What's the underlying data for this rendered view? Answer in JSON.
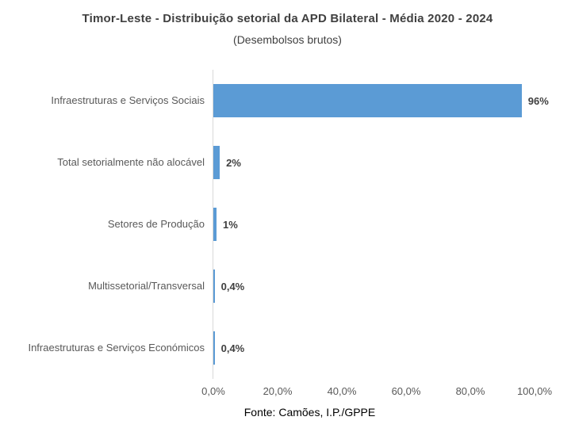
{
  "title": "Timor-Leste - Distribuição setorial da APD Bilateral - Média 2020 - 2024",
  "subtitle": "(Desembolsos brutos)",
  "source": "Fonte: Camões, I.P./GPPE",
  "colors": {
    "bar": "#5b9bd5",
    "title_text": "#404040",
    "axis_text": "#595959",
    "axis_line": "#d9d9d9"
  },
  "chart_data": {
    "type": "bar",
    "orientation": "horizontal",
    "title": "Timor-Leste - Distribuição setorial da APD Bilateral - Média 2020 - 2024",
    "subtitle": "(Desembolsos brutos)",
    "categories": [
      "Infraestruturas e Serviços Sociais",
      "Total setorialmente não alocável",
      "Setores de Produção",
      "Multissetorial/Transversal",
      "Infraestruturas e Serviços Económicos"
    ],
    "values": [
      96,
      2,
      1,
      0.4,
      0.4
    ],
    "value_labels": [
      "96%",
      "2%",
      "1%",
      "0,4%",
      "0,4%"
    ],
    "x_ticks": [
      "0,0%",
      "20,0%",
      "40,0%",
      "60,0%",
      "80,0%",
      "100,0%"
    ],
    "xlim": [
      0,
      100
    ],
    "xlabel": "",
    "ylabel": "",
    "grid": false,
    "legend": "none",
    "data_labels": "outside-end"
  }
}
